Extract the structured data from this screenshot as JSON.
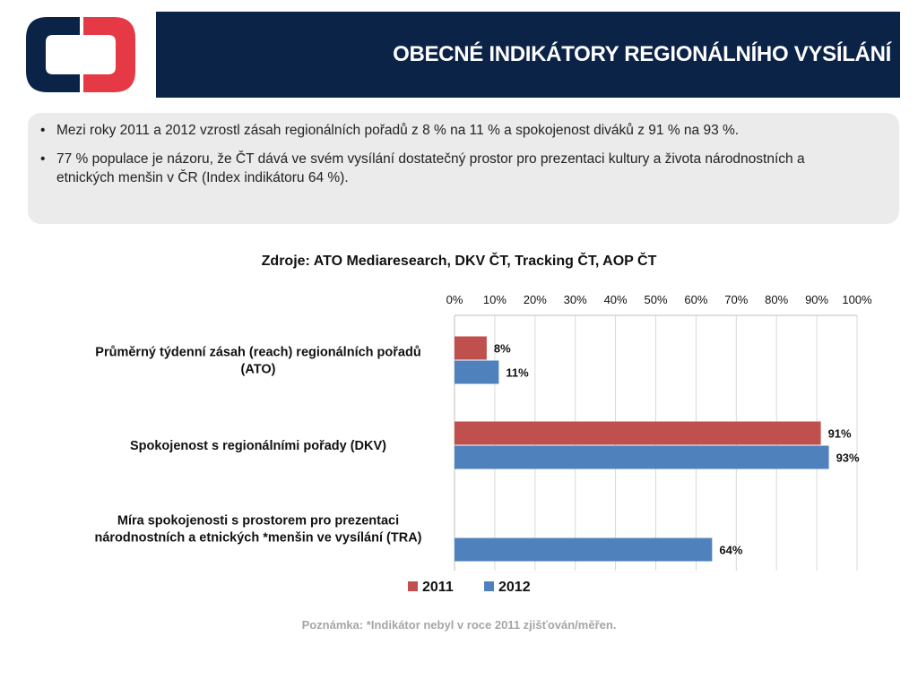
{
  "header": {
    "title": "OBECNÉ INDIKÁTORY REGIONÁLNÍHO VYSÍLÁNÍ"
  },
  "colors": {
    "header_bg": "#0b2347",
    "logo_blue": "#0b2347",
    "logo_red": "#e63946",
    "series_2011": "#c0504d",
    "series_2012": "#4f81bd"
  },
  "summary": {
    "bullets": [
      "Mezi roky 2011 a 2012 vzrostl zásah regionálních pořadů z 8 % na 11 % a spokojenost diváků z 91 % na 93 %.",
      "77 % populace je názoru, že ČT dává ve svém vysílání dostatečný prostor pro prezentaci kultury a života národnostních a etnických menšin v ČR (Index indikátoru 64 %)."
    ]
  },
  "sources": "Zdroje: ATO Mediaresearch, DKV ČT, Tracking ČT, AOP ČT",
  "chart_data": {
    "type": "bar",
    "orientation": "horizontal",
    "axis_position": "top",
    "xlim": [
      0,
      100
    ],
    "ticks": [
      "0%",
      "10%",
      "20%",
      "30%",
      "40%",
      "50%",
      "60%",
      "70%",
      "80%",
      "90%",
      "100%"
    ],
    "grid": true,
    "legend": "bottom",
    "categories": [
      "Průměrný týdenní zásah (reach) regionálních pořadů (ATO)",
      "Spokojenost s regionálními pořady (DKV)",
      "Míra spokojenosti s prostorem pro prezentaci národnostních a etnických *menšin ve vysílání (TRA)"
    ],
    "series": [
      {
        "name": "2011",
        "values": [
          8,
          91,
          null
        ],
        "labels": [
          "8%",
          "91%",
          ""
        ]
      },
      {
        "name": "2012",
        "values": [
          11,
          93,
          64
        ],
        "labels": [
          "11%",
          "93%",
          "64%"
        ]
      }
    ]
  },
  "note": "Poznámka: *Indikátor nebyl v roce 2011 zjišťován/měřen."
}
